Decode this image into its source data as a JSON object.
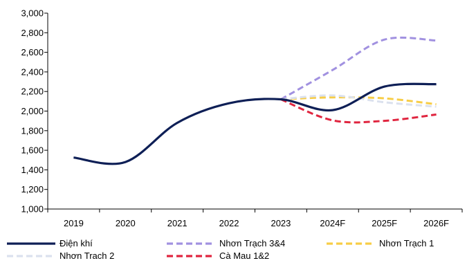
{
  "chart_data": {
    "type": "line",
    "categories": [
      "2019",
      "2020",
      "2021",
      "2022",
      "2023",
      "2024F",
      "2025F",
      "2026F"
    ],
    "y_ticks": [
      "1,000",
      "1,200",
      "1,400",
      "1,600",
      "1,800",
      "2,000",
      "2,200",
      "2,400",
      "2,600",
      "2,800",
      "3,000"
    ],
    "ylim": [
      1000,
      3000
    ],
    "grid": false,
    "legend_position": "bottom",
    "series": [
      {
        "name": "Điện khí",
        "color": "#0e1f56",
        "dash": "solid",
        "points": [
          {
            "x": "2019",
            "y": 1525
          },
          {
            "x": "2020",
            "y": 1480
          },
          {
            "x": "2021",
            "y": 1880
          },
          {
            "x": "2022",
            "y": 2080
          },
          {
            "x": "2023",
            "y": 2120
          },
          {
            "x": "2024F",
            "y": 2010
          },
          {
            "x": "2025F",
            "y": 2250
          },
          {
            "x": "2026F",
            "y": 2275
          }
        ]
      },
      {
        "name": "Nhơn Trạch 3&4",
        "color": "#a191e0",
        "dash": "dashed",
        "points": [
          {
            "x": "2023",
            "y": 2120
          },
          {
            "x": "2024F",
            "y": 2420
          },
          {
            "x": "2025F",
            "y": 2730
          },
          {
            "x": "2026F",
            "y": 2720
          }
        ]
      },
      {
        "name": "Nhơn Trạch 1",
        "color": "#f7cd46",
        "dash": "dashed",
        "points": [
          {
            "x": "2023",
            "y": 2120
          },
          {
            "x": "2024F",
            "y": 2140
          },
          {
            "x": "2025F",
            "y": 2130
          },
          {
            "x": "2026F",
            "y": 2070
          }
        ]
      },
      {
        "name": "Nhơn Trach 2",
        "color": "#dbe1ee",
        "dash": "dashed",
        "points": [
          {
            "x": "2023",
            "y": 2120
          },
          {
            "x": "2024F",
            "y": 2160
          },
          {
            "x": "2025F",
            "y": 2090
          },
          {
            "x": "2026F",
            "y": 2045
          }
        ]
      },
      {
        "name": "Cà Mau 1&2",
        "color": "#e0253f",
        "dash": "dashed",
        "points": [
          {
            "x": "2023",
            "y": 2120
          },
          {
            "x": "2024F",
            "y": 1905
          },
          {
            "x": "2025F",
            "y": 1900
          },
          {
            "x": "2026F",
            "y": 1965
          }
        ]
      }
    ]
  }
}
